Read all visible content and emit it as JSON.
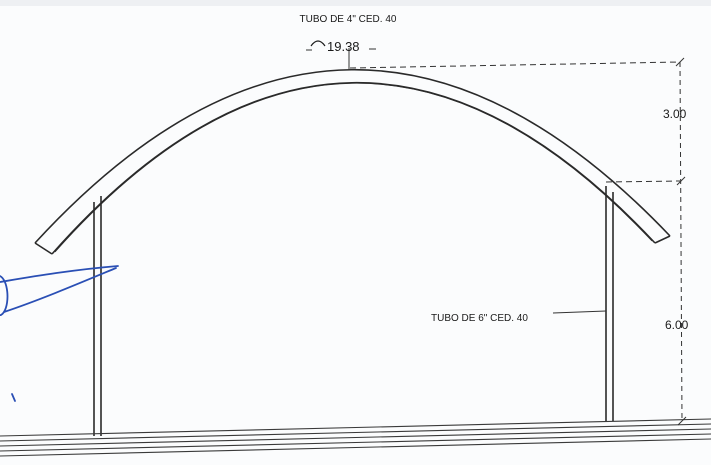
{
  "drawing": {
    "top_pipe_label": "TUBO DE 4\" CED. 40",
    "arc_length_label": "19.38",
    "column_pipe_label": "TUBO DE 6\" CED. 40",
    "dimension_rise": "3.00",
    "dimension_column_height": "6.00"
  },
  "colors": {
    "line": "#2a2a2a",
    "dimension": "#333333",
    "pen_ink": "#2a4fb5",
    "paper": "#fbfcfd"
  },
  "icons": [
    "arc-length-symbol-icon"
  ]
}
